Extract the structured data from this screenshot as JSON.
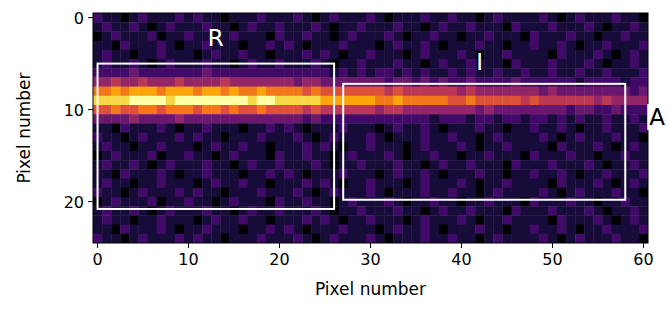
{
  "chart_data": {
    "type": "heatmap",
    "xlabel": "Pixel number",
    "ylabel": "Pixel number",
    "xlim": [
      -0.5,
      60.5
    ],
    "ylim": [
      24.5,
      -0.5
    ],
    "xticks": [
      0,
      10,
      20,
      30,
      40,
      50,
      60
    ],
    "yticks": [
      0,
      10,
      20
    ],
    "zlim": [
      0,
      10
    ],
    "x": [
      0,
      1,
      2,
      3,
      4,
      5,
      6,
      7,
      8,
      9,
      10,
      11,
      12,
      13,
      14,
      15,
      16,
      17,
      18,
      19,
      20,
      21,
      22,
      23,
      24,
      25,
      26,
      27,
      28,
      29,
      30,
      31,
      32,
      33,
      34,
      35,
      36,
      37,
      38,
      39,
      40,
      41,
      42,
      43,
      44,
      45,
      46,
      47,
      48,
      49,
      50,
      51,
      52,
      53,
      54,
      55,
      56,
      57,
      58,
      59,
      60
    ],
    "y": [
      0,
      1,
      2,
      3,
      4,
      5,
      6,
      7,
      8,
      9,
      10,
      11,
      12,
      13,
      14,
      15,
      16,
      17,
      18,
      19,
      20,
      21,
      22,
      23,
      24
    ],
    "cells": [
      [
        2,
        1,
        1,
        0,
        1,
        2,
        1,
        1,
        1,
        2,
        1,
        2,
        1,
        1,
        0,
        1,
        1,
        1,
        2,
        1,
        1,
        1,
        2,
        1,
        0,
        1,
        2,
        1,
        1,
        1,
        2,
        1,
        0,
        1,
        1,
        1,
        2,
        1,
        1,
        2,
        1,
        1,
        0,
        1,
        2,
        1,
        1,
        1,
        1,
        2,
        1,
        0,
        1,
        2,
        1,
        1,
        1,
        2,
        1,
        1,
        0
      ],
      [
        1,
        2,
        1,
        1,
        2,
        1,
        0,
        1,
        2,
        1,
        1,
        1,
        2,
        1,
        1,
        0,
        1,
        2,
        1,
        1,
        2,
        1,
        1,
        1,
        2,
        1,
        0,
        1,
        1,
        2,
        1,
        1,
        1,
        2,
        1,
        1,
        0,
        1,
        2,
        1,
        1,
        2,
        1,
        1,
        1,
        0,
        2,
        1,
        1,
        1,
        2,
        1,
        1,
        1,
        2,
        1,
        0,
        1,
        1,
        2,
        1
      ],
      [
        0,
        1,
        2,
        1,
        1,
        1,
        2,
        0,
        1,
        1,
        2,
        1,
        1,
        0,
        1,
        2,
        1,
        1,
        1,
        0,
        2,
        1,
        1,
        2,
        1,
        1,
        0,
        1,
        2,
        1,
        1,
        1,
        2,
        1,
        0,
        1,
        1,
        2,
        1,
        1,
        0,
        1,
        1,
        2,
        1,
        1,
        1,
        0,
        2,
        1,
        1,
        1,
        2,
        1,
        1,
        0,
        1,
        1,
        2,
        1,
        1
      ],
      [
        1,
        1,
        0,
        2,
        1,
        1,
        1,
        2,
        1,
        0,
        1,
        1,
        2,
        1,
        1,
        1,
        0,
        1,
        1,
        2,
        1,
        2,
        1,
        0,
        1,
        1,
        1,
        2,
        1,
        1,
        1,
        0,
        1,
        2,
        1,
        1,
        2,
        1,
        0,
        1,
        1,
        1,
        2,
        1,
        1,
        0,
        1,
        1,
        2,
        1,
        1,
        2,
        1,
        0,
        1,
        1,
        2,
        1,
        1,
        1,
        2
      ],
      [
        1,
        2,
        1,
        1,
        0,
        1,
        1,
        2,
        1,
        1,
        1,
        0,
        1,
        2,
        1,
        1,
        2,
        1,
        1,
        0,
        1,
        1,
        1,
        2,
        1,
        2,
        1,
        0,
        1,
        1,
        2,
        1,
        1,
        1,
        0,
        1,
        2,
        1,
        1,
        1,
        2,
        1,
        0,
        1,
        1,
        2,
        1,
        1,
        1,
        1,
        0,
        2,
        1,
        1,
        1,
        2,
        1,
        0,
        1,
        2,
        1
      ],
      [
        1,
        2,
        1,
        1,
        2,
        1,
        0,
        1,
        2,
        1,
        1,
        1,
        2,
        1,
        1,
        0,
        1,
        2,
        1,
        1,
        2,
        1,
        1,
        1,
        2,
        1,
        0,
        1,
        1,
        2,
        1,
        1,
        1,
        2,
        1,
        1,
        0,
        1,
        2,
        1,
        1,
        2,
        1,
        1,
        1,
        0,
        2,
        1,
        1,
        1,
        2,
        1,
        1,
        1,
        2,
        1,
        0,
        1,
        1,
        2,
        1
      ],
      [
        2,
        2,
        2,
        2,
        3,
        2,
        2,
        2,
        2,
        2,
        2,
        2,
        3,
        2,
        2,
        2,
        2,
        2,
        2,
        2,
        2,
        2,
        2,
        2,
        2,
        2,
        1,
        2,
        1,
        2,
        1,
        2,
        2,
        1,
        2,
        1,
        2,
        1,
        1,
        2,
        1,
        2,
        1,
        1,
        2,
        1,
        1,
        2,
        1,
        1,
        2,
        1,
        1,
        2,
        1,
        1,
        2,
        1,
        1,
        1,
        2
      ],
      [
        4,
        4,
        5,
        4,
        4,
        5,
        4,
        4,
        4,
        5,
        4,
        4,
        4,
        4,
        5,
        4,
        4,
        4,
        4,
        4,
        4,
        4,
        3,
        4,
        4,
        3,
        3,
        3,
        3,
        3,
        3,
        3,
        2,
        3,
        3,
        2,
        3,
        2,
        3,
        2,
        2,
        3,
        2,
        2,
        2,
        2,
        3,
        2,
        2,
        2,
        2,
        2,
        2,
        1,
        2,
        2,
        2,
        2,
        1,
        2,
        2
      ],
      [
        7,
        7,
        8,
        7,
        8,
        8,
        8,
        7,
        8,
        8,
        8,
        7,
        8,
        8,
        7,
        8,
        7,
        7,
        8,
        7,
        7,
        7,
        7,
        6,
        7,
        6,
        6,
        6,
        6,
        6,
        6,
        6,
        5,
        6,
        5,
        5,
        5,
        5,
        5,
        5,
        4,
        5,
        4,
        4,
        4,
        4,
        4,
        4,
        4,
        3,
        4,
        3,
        3,
        3,
        3,
        3,
        3,
        3,
        3,
        2,
        3
      ],
      [
        9,
        9,
        9,
        9,
        10,
        10,
        10,
        10,
        9,
        10,
        10,
        10,
        10,
        10,
        10,
        10,
        10,
        9,
        10,
        10,
        9,
        9,
        9,
        9,
        9,
        8,
        8,
        8,
        8,
        8,
        8,
        7,
        7,
        8,
        7,
        7,
        7,
        7,
        7,
        6,
        6,
        7,
        6,
        6,
        6,
        6,
        6,
        5,
        6,
        5,
        5,
        5,
        5,
        5,
        5,
        4,
        5,
        4,
        4,
        4,
        4
      ],
      [
        6,
        6,
        7,
        6,
        6,
        7,
        7,
        6,
        7,
        7,
        7,
        6,
        7,
        7,
        6,
        7,
        6,
        6,
        7,
        6,
        6,
        6,
        6,
        5,
        6,
        5,
        5,
        5,
        5,
        5,
        5,
        4,
        5,
        5,
        4,
        4,
        4,
        4,
        4,
        4,
        4,
        4,
        3,
        4,
        3,
        3,
        3,
        3,
        3,
        3,
        3,
        3,
        2,
        3,
        3,
        2,
        2,
        3,
        2,
        2,
        2
      ],
      [
        3,
        3,
        3,
        3,
        4,
        3,
        3,
        3,
        3,
        4,
        3,
        3,
        3,
        3,
        3,
        3,
        3,
        3,
        3,
        3,
        3,
        3,
        3,
        2,
        3,
        2,
        2,
        2,
        2,
        2,
        2,
        2,
        2,
        2,
        2,
        2,
        2,
        1,
        2,
        2,
        2,
        1,
        2,
        2,
        1,
        2,
        2,
        1,
        2,
        2,
        1,
        2,
        1,
        2,
        1,
        1,
        2,
        1,
        1,
        2,
        1
      ],
      [
        1,
        1,
        0,
        2,
        1,
        1,
        1,
        2,
        1,
        0,
        1,
        1,
        2,
        1,
        1,
        1,
        0,
        1,
        1,
        2,
        1,
        2,
        1,
        0,
        1,
        1,
        1,
        2,
        1,
        1,
        1,
        0,
        1,
        2,
        1,
        1,
        2,
        1,
        0,
        1,
        1,
        1,
        2,
        1,
        1,
        0,
        1,
        1,
        2,
        1,
        1,
        2,
        1,
        0,
        1,
        1,
        2,
        1,
        1,
        1,
        2
      ],
      [
        2,
        1,
        1,
        0,
        1,
        2,
        1,
        1,
        1,
        2,
        1,
        2,
        1,
        1,
        0,
        1,
        1,
        1,
        2,
        1,
        1,
        1,
        2,
        1,
        0,
        1,
        2,
        1,
        1,
        1,
        2,
        1,
        0,
        1,
        1,
        1,
        2,
        1,
        1,
        2,
        1,
        1,
        0,
        1,
        2,
        1,
        1,
        1,
        1,
        2,
        1,
        0,
        1,
        2,
        1,
        1,
        1,
        2,
        1,
        1,
        0
      ],
      [
        1,
        2,
        1,
        1,
        0,
        1,
        1,
        2,
        1,
        1,
        1,
        0,
        1,
        2,
        1,
        1,
        2,
        1,
        1,
        0,
        1,
        1,
        1,
        2,
        1,
        2,
        1,
        0,
        1,
        1,
        2,
        1,
        1,
        1,
        0,
        1,
        2,
        1,
        1,
        1,
        2,
        1,
        0,
        1,
        1,
        2,
        1,
        1,
        1,
        1,
        0,
        2,
        1,
        1,
        1,
        2,
        1,
        0,
        1,
        2,
        1
      ],
      [
        0,
        1,
        2,
        1,
        1,
        1,
        2,
        0,
        1,
        1,
        2,
        1,
        1,
        0,
        1,
        2,
        1,
        1,
        1,
        0,
        2,
        1,
        1,
        2,
        1,
        1,
        0,
        1,
        2,
        1,
        1,
        1,
        2,
        1,
        0,
        1,
        1,
        2,
        1,
        1,
        0,
        1,
        1,
        2,
        1,
        1,
        1,
        0,
        2,
        1,
        1,
        1,
        2,
        1,
        1,
        0,
        1,
        1,
        2,
        1,
        1
      ],
      [
        1,
        2,
        1,
        1,
        2,
        1,
        0,
        1,
        2,
        1,
        1,
        1,
        2,
        1,
        1,
        0,
        1,
        2,
        1,
        1,
        2,
        1,
        1,
        1,
        2,
        1,
        0,
        1,
        1,
        2,
        1,
        1,
        1,
        2,
        1,
        1,
        0,
        1,
        2,
        1,
        1,
        2,
        1,
        1,
        1,
        0,
        2,
        1,
        1,
        1,
        2,
        1,
        1,
        1,
        2,
        1,
        0,
        1,
        1,
        2,
        1
      ],
      [
        1,
        1,
        0,
        2,
        1,
        1,
        1,
        2,
        1,
        0,
        1,
        1,
        2,
        1,
        1,
        1,
        0,
        1,
        1,
        2,
        1,
        2,
        1,
        0,
        1,
        1,
        1,
        2,
        1,
        1,
        1,
        0,
        1,
        2,
        1,
        1,
        2,
        1,
        0,
        1,
        1,
        1,
        2,
        1,
        1,
        0,
        1,
        1,
        2,
        1,
        1,
        2,
        1,
        0,
        1,
        1,
        2,
        1,
        1,
        1,
        2
      ],
      [
        1,
        2,
        1,
        1,
        0,
        1,
        1,
        2,
        1,
        1,
        1,
        0,
        1,
        2,
        1,
        1,
        2,
        1,
        1,
        0,
        1,
        1,
        1,
        2,
        1,
        2,
        1,
        0,
        1,
        1,
        2,
        1,
        1,
        1,
        0,
        1,
        2,
        1,
        1,
        1,
        2,
        1,
        0,
        1,
        1,
        2,
        1,
        1,
        1,
        1,
        0,
        2,
        1,
        1,
        1,
        2,
        1,
        0,
        1,
        2,
        1
      ],
      [
        2,
        1,
        1,
        0,
        1,
        2,
        1,
        1,
        1,
        2,
        1,
        2,
        1,
        1,
        0,
        1,
        1,
        1,
        2,
        1,
        1,
        1,
        2,
        1,
        0,
        1,
        2,
        1,
        1,
        1,
        2,
        1,
        0,
        1,
        1,
        1,
        2,
        1,
        1,
        2,
        1,
        1,
        0,
        1,
        2,
        1,
        1,
        1,
        1,
        2,
        1,
        0,
        1,
        2,
        1,
        1,
        1,
        2,
        1,
        1,
        0
      ],
      [
        0,
        1,
        2,
        1,
        1,
        1,
        2,
        0,
        1,
        1,
        2,
        1,
        1,
        0,
        1,
        2,
        1,
        1,
        1,
        0,
        2,
        1,
        1,
        2,
        1,
        1,
        0,
        1,
        2,
        1,
        1,
        1,
        2,
        1,
        0,
        1,
        1,
        2,
        1,
        1,
        0,
        1,
        1,
        2,
        1,
        1,
        1,
        0,
        2,
        1,
        1,
        1,
        2,
        1,
        1,
        0,
        1,
        1,
        2,
        1,
        1
      ],
      [
        1,
        2,
        1,
        1,
        2,
        1,
        0,
        1,
        2,
        1,
        1,
        1,
        2,
        1,
        1,
        0,
        1,
        2,
        1,
        1,
        2,
        1,
        1,
        1,
        2,
        1,
        0,
        1,
        1,
        2,
        1,
        1,
        1,
        2,
        1,
        1,
        0,
        1,
        2,
        1,
        1,
        2,
        1,
        1,
        1,
        0,
        2,
        1,
        1,
        1,
        2,
        1,
        1,
        1,
        2,
        1,
        0,
        1,
        1,
        2,
        1
      ],
      [
        1,
        2,
        1,
        1,
        0,
        1,
        1,
        2,
        1,
        1,
        1,
        0,
        1,
        2,
        1,
        1,
        2,
        1,
        1,
        0,
        1,
        1,
        1,
        2,
        1,
        2,
        1,
        0,
        1,
        1,
        2,
        1,
        1,
        1,
        0,
        1,
        2,
        1,
        1,
        1,
        2,
        1,
        0,
        1,
        1,
        2,
        1,
        1,
        1,
        1,
        0,
        2,
        1,
        1,
        1,
        2,
        1,
        0,
        1,
        2,
        1
      ],
      [
        1,
        1,
        0,
        2,
        1,
        1,
        1,
        2,
        1,
        0,
        1,
        1,
        2,
        1,
        1,
        1,
        0,
        1,
        1,
        2,
        1,
        2,
        1,
        0,
        1,
        1,
        1,
        2,
        1,
        1,
        1,
        0,
        1,
        2,
        1,
        1,
        2,
        1,
        0,
        1,
        1,
        1,
        2,
        1,
        1,
        0,
        1,
        1,
        2,
        1,
        1,
        2,
        1,
        0,
        1,
        1,
        2,
        1,
        1,
        1,
        2
      ],
      [
        2,
        1,
        1,
        0,
        1,
        2,
        1,
        1,
        1,
        2,
        1,
        2,
        1,
        1,
        0,
        1,
        1,
        1,
        2,
        1,
        1,
        1,
        2,
        1,
        0,
        1,
        2,
        1,
        1,
        1,
        2,
        1,
        0,
        1,
        1,
        1,
        2,
        1,
        1,
        2,
        1,
        1,
        0,
        1,
        2,
        1,
        1,
        1,
        1,
        2,
        1,
        0,
        1,
        2,
        1,
        1,
        1,
        2,
        1,
        1,
        0
      ]
    ],
    "regions": [
      {
        "x0": 0,
        "x1": 26,
        "y0": 5,
        "y1": 20.8
      },
      {
        "x0": 27,
        "x1": 58,
        "y0": 7.2,
        "y1": 19.8
      }
    ],
    "annotations": [
      {
        "text": "R",
        "x": 13,
        "y": 2.2
      },
      {
        "text": "I",
        "x": 42,
        "y": 4.8
      },
      {
        "text": "A",
        "x": 61.5,
        "y": 10.8
      }
    ]
  }
}
